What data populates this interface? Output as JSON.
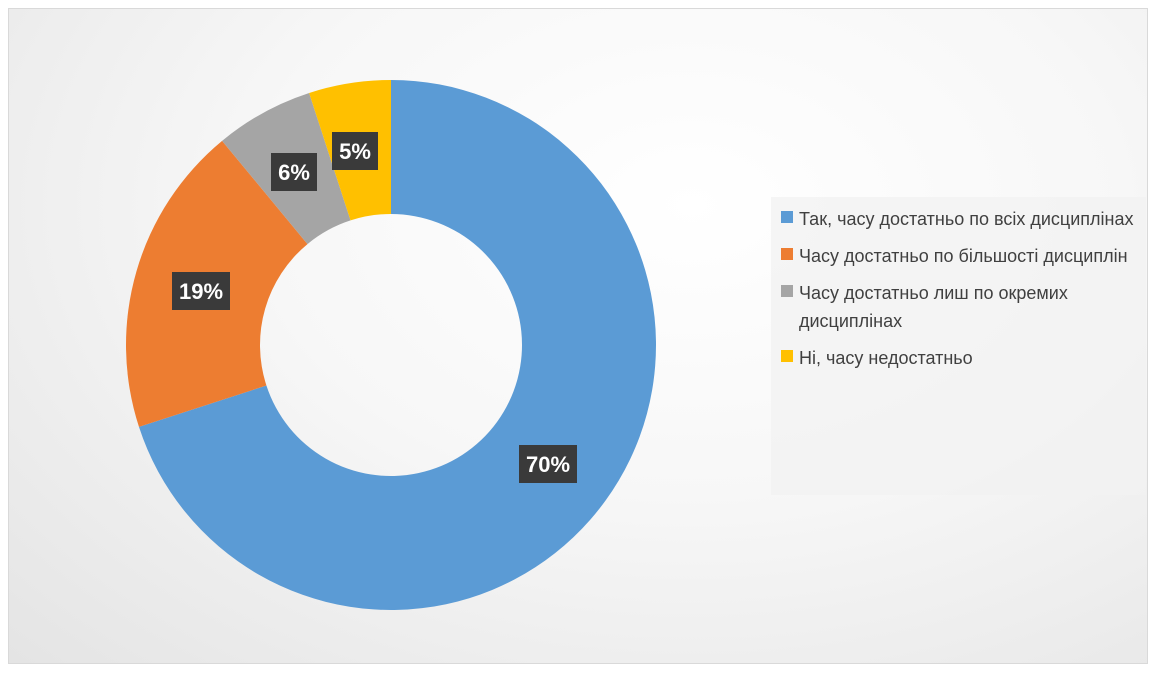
{
  "chart_data": {
    "type": "pie",
    "categories": [
      "Так, часу достатньо по всіх дисциплінах",
      "Часу достатньо по більшості дисциплін",
      "Часу достатньо лиш по окремих дисциплінах",
      "Ні, часу недостатньо"
    ],
    "values": [
      70,
      19,
      6,
      5
    ],
    "data_labels": [
      "70%",
      "19%",
      "6%",
      "5%"
    ],
    "colors": [
      "#5b9bd5",
      "#ed7d31",
      "#a5a5a5",
      "#ffc000"
    ],
    "hole": "donut",
    "legend_position": "right"
  }
}
